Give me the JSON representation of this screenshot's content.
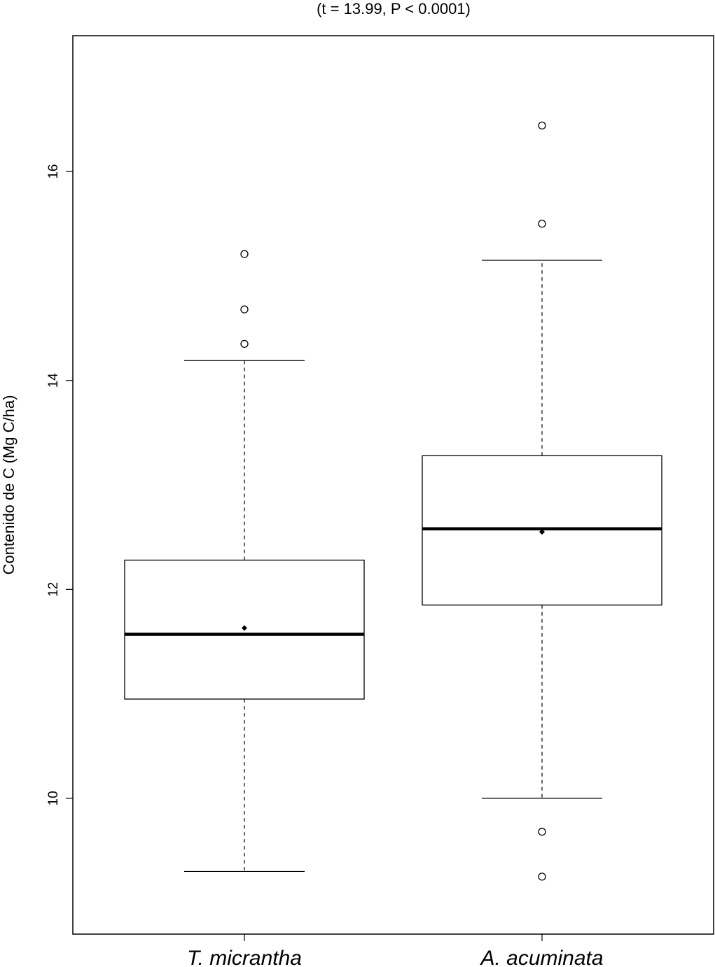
{
  "chart_data": {
    "type": "boxplot",
    "subtitle": "(t = 13.99, P < 0.0001)",
    "ylabel": "Contenido de C (Mg C/ha)",
    "xlabel": "",
    "ylim": [
      8.7,
      17.3
    ],
    "yticks": [
      10,
      12,
      14,
      16
    ],
    "grid": false,
    "legend": "none",
    "categories": [
      "T. micrantha",
      "A. acuminata"
    ],
    "boxes": [
      {
        "category": "T. micrantha",
        "whisker_low": 9.3,
        "q1": 10.95,
        "median": 11.57,
        "q3": 12.28,
        "whisker_high": 14.19,
        "mean": 11.63,
        "outliers": [
          14.35,
          14.68,
          15.21
        ]
      },
      {
        "category": "A. acuminata",
        "whisker_low": 10.0,
        "q1": 11.85,
        "median": 12.58,
        "q3": 13.28,
        "whisker_high": 15.15,
        "mean": 12.55,
        "outliers": [
          9.25,
          9.68,
          15.5,
          16.44
        ]
      }
    ]
  }
}
